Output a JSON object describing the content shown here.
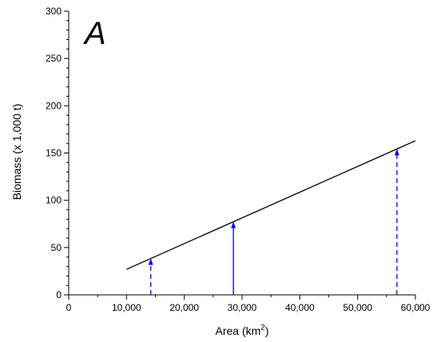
{
  "chart_data": {
    "type": "line",
    "panel_label": "A",
    "xlabel": "Area (km",
    "xlabel_sup": "2",
    "xlabel_end": ")",
    "ylabel": "Biomass (x 1,000 t)",
    "xlim": [
      0,
      60000
    ],
    "ylim": [
      0,
      300
    ],
    "xticks": [
      0,
      10000,
      20000,
      30000,
      40000,
      50000,
      60000
    ],
    "xtick_labels": [
      "0",
      "10,000",
      "20,000",
      "30,000",
      "40,000",
      "50,000",
      "60,000"
    ],
    "yticks": [
      0,
      50,
      100,
      150,
      200,
      250,
      300
    ],
    "ytick_labels": [
      "0",
      "50",
      "100",
      "150",
      "200",
      "250",
      "300"
    ],
    "x_minor_step": 5000,
    "y_minor_step": 10,
    "grid": false,
    "series": [
      {
        "x": [
          10000,
          60000
        ],
        "y": [
          27,
          163
        ],
        "color": "#000000"
      }
    ],
    "arrows": [
      {
        "x": 14200,
        "y_top": 38.5,
        "style": "dashed",
        "color": "#0000ff"
      },
      {
        "x": 28500,
        "y_top": 77.4,
        "style": "solid",
        "color": "#0000ff"
      },
      {
        "x": 56800,
        "y_top": 154.3,
        "style": "dashed",
        "color": "#0000ff"
      }
    ]
  }
}
